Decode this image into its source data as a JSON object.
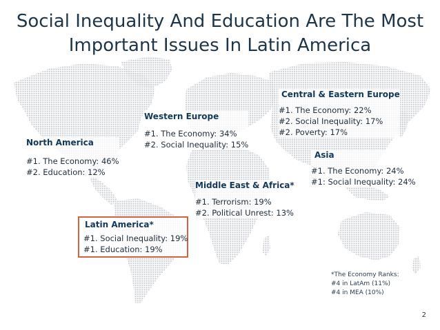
{
  "title_line1": "Social Inequality And Education Are The Most",
  "title_line2": "Important Issues In Latin America",
  "regions": {
    "north_america": {
      "name": "North America",
      "line1": "#1. The Economy: 46%",
      "line2": "#2. Education: 12%"
    },
    "western_europe": {
      "name": "Western Europe",
      "line1": "#1. The Economy: 34%",
      "line2": "#2. Social Inequality: 15%"
    },
    "central_eastern_europe": {
      "name": "Central & Eastern Europe",
      "line1": "#1. The Economy: 22%",
      "line2": "#2. Social Inequality: 17%",
      "line3": "#2. Poverty: 17%"
    },
    "asia": {
      "name": "Asia",
      "line1": "#1. The Economy: 24%",
      "line2": "#1: Social Inequality: 24%"
    },
    "middle_east_africa": {
      "name": "Middle East & Africa*",
      "line1": "#1. Terrorism: 19%",
      "line2": "#2. Political Unrest: 13%"
    },
    "latin_america": {
      "name": "Latin America*",
      "line1": "#1. Social Inequality: 19%",
      "line2": "#1. Education: 19%"
    }
  },
  "footnote": {
    "line1": "*The Economy Ranks:",
    "line2": "#4 in LatAm (11%)",
    "line3": "#4 in MEA (10%)"
  },
  "page_number": "2",
  "colors": {
    "title": "#1e3548",
    "region_name": "#12385a",
    "highlight_border": "#d8603a",
    "map_dots": "#c9cdd2"
  }
}
